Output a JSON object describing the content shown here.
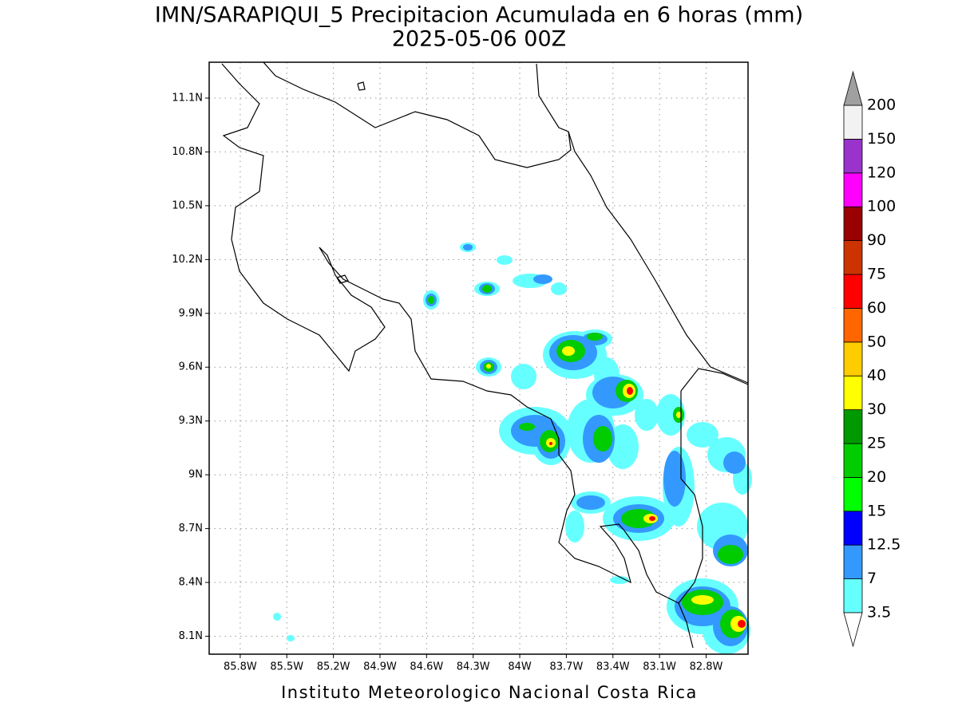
{
  "title": "IMN/SARAPIQUI_5 Precipitacion Acumulada en 6 horas (mm)",
  "subtitle": "2025-05-06 00Z",
  "footer": "Instituto Meteorologico Nacional Costa Rica",
  "map": {
    "xlim": [
      -86.0,
      -82.53
    ],
    "ylim": [
      8.0,
      11.3
    ],
    "grid": true,
    "xticks": [
      {
        "value": -85.8,
        "label": "85.8W"
      },
      {
        "value": -85.5,
        "label": "85.5W"
      },
      {
        "value": -85.2,
        "label": "85.2W"
      },
      {
        "value": -84.9,
        "label": "84.9W"
      },
      {
        "value": -84.6,
        "label": "84.6W"
      },
      {
        "value": -84.3,
        "label": "84.3W"
      },
      {
        "value": -84.0,
        "label": "84W"
      },
      {
        "value": -83.7,
        "label": "83.7W"
      },
      {
        "value": -83.4,
        "label": "83.4W"
      },
      {
        "value": -83.1,
        "label": "83.1W"
      },
      {
        "value": -82.8,
        "label": "82.8W"
      }
    ],
    "yticks": [
      {
        "value": 8.1,
        "label": "8.1N"
      },
      {
        "value": 8.4,
        "label": "8.4N"
      },
      {
        "value": 8.7,
        "label": "8.7N"
      },
      {
        "value": 9.0,
        "label": "9N"
      },
      {
        "value": 9.3,
        "label": "9.3N"
      },
      {
        "value": 9.6,
        "label": "9.6N"
      },
      {
        "value": 9.9,
        "label": "9.9N"
      },
      {
        "value": 10.2,
        "label": "10.2N"
      },
      {
        "value": 10.5,
        "label": "10.5N"
      },
      {
        "value": 10.8,
        "label": "10.8N"
      },
      {
        "value": 11.1,
        "label": "11.1N"
      }
    ]
  },
  "colorbar": {
    "levels": [
      3.5,
      7,
      12.5,
      15,
      20,
      25,
      30,
      40,
      50,
      60,
      75,
      90,
      100,
      120,
      150,
      200
    ],
    "colors": [
      "#66ffff",
      "#3399ff",
      "#0000ff",
      "#00ff00",
      "#00cc00",
      "#009900",
      "#ffff00",
      "#ffcc00",
      "#ff6600",
      "#ff0000",
      "#cc3300",
      "#990000",
      "#ff00ff",
      "#9933cc",
      "#f2f2f2"
    ],
    "under_color": "#ffffff",
    "over_color": "#a0a0a0"
  }
}
